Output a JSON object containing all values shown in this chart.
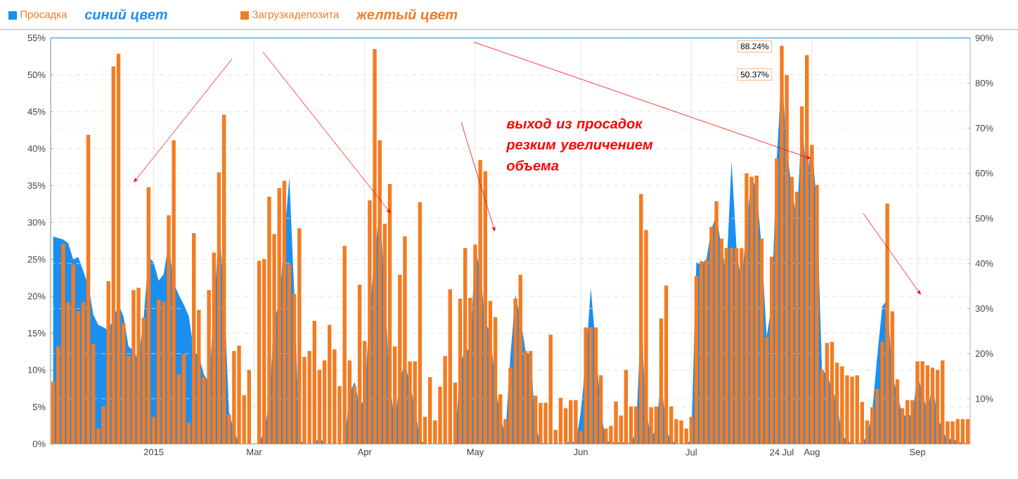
{
  "chart_data": {
    "type": "bar",
    "categories": [
      null,
      null,
      null,
      null,
      null,
      null,
      null,
      null,
      null,
      null,
      null,
      null,
      null,
      null,
      null,
      null,
      null,
      null,
      null,
      null,
      "2015",
      null,
      null,
      null,
      null,
      null,
      null,
      null,
      null,
      null,
      null,
      null,
      null,
      null,
      null,
      null,
      null,
      null,
      null,
      null,
      "Mar",
      null,
      null,
      null,
      null,
      null,
      null,
      null,
      null,
      null,
      null,
      null,
      null,
      null,
      null,
      null,
      null,
      null,
      null,
      null,
      null,
      null,
      "Apr",
      null,
      null,
      null,
      null,
      null,
      null,
      null,
      null,
      null,
      null,
      null,
      null,
      null,
      null,
      null,
      null,
      null,
      null,
      null,
      null,
      null,
      "May",
      null,
      null,
      null,
      null,
      null,
      null,
      null,
      null,
      null,
      null,
      null,
      null,
      null,
      null,
      null,
      null,
      null,
      null,
      null,
      null,
      "Jun",
      null,
      null,
      null,
      null,
      null,
      null,
      null,
      null,
      null,
      null,
      null,
      null,
      null,
      null,
      null,
      null,
      null,
      null,
      null,
      null,
      null,
      "Jul",
      null,
      null,
      null,
      null,
      null,
      null,
      null,
      null,
      null,
      null,
      null,
      null,
      null,
      null,
      null,
      null,
      null,
      "24 Jul",
      null,
      null,
      null,
      null,
      null,
      "Aug",
      null,
      null,
      null,
      null,
      null,
      null,
      null,
      null,
      null,
      null,
      null,
      null,
      null,
      null,
      null,
      null,
      null,
      null,
      null,
      null,
      "Sep",
      null,
      null,
      null,
      null,
      null,
      null,
      null,
      null,
      null,
      null
    ],
    "series": [
      {
        "name": "Просадка",
        "type": "area",
        "axis": "y",
        "color": "#1a8ff0",
        "values": [
          28.1,
          27.9,
          27.7,
          27.2,
          25.0,
          25.3,
          23.4,
          21.5,
          17.5,
          16.1,
          15.8,
          15.4,
          17.0,
          18.9,
          17.3,
          13.2,
          12.6,
          11.3,
          17.0,
          25.3,
          24.6,
          22.1,
          23.0,
          27.2,
          21.8,
          20.2,
          18.9,
          17.3,
          12.6,
          11.9,
          9.4,
          8.4,
          17.7,
          29.7,
          20.8,
          4.3,
          1.8,
          0,
          0,
          0,
          0,
          0,
          1.8,
          5.6,
          17.0,
          18.9,
          27.8,
          36.1,
          20.2,
          0.5,
          0,
          0,
          0,
          1.0,
          0,
          0,
          0,
          0,
          0,
          6.9,
          8.4,
          5.0,
          6.2,
          18.3,
          25.3,
          32.2,
          20.8,
          8.1,
          3.0,
          8.8,
          11.0,
          8.1,
          5.0,
          0.5,
          0,
          0,
          0,
          0,
          0,
          0,
          0,
          10.7,
          12.9,
          12.6,
          26.5,
          23.4,
          16.4,
          15.1,
          8.1,
          3.7,
          1.1,
          11.9,
          20.2,
          17.0,
          12.6,
          11.9,
          2.4,
          0.2,
          0,
          0,
          0,
          0,
          0,
          0.5,
          0,
          4.3,
          11.3,
          21.1,
          13.2,
          4.3,
          0.5,
          0.2,
          0.2,
          0.2,
          0.2,
          0,
          1.8,
          17.0,
          4.3,
          1.1,
          1.8,
          9.1,
          1.8,
          0.5,
          0,
          0,
          0,
          0.5,
          24.6,
          24.3,
          25.0,
          29.1,
          31.0,
          26.5,
          23.4,
          38.3,
          26.5,
          21.5,
          29.7,
          36.1,
          34.5,
          26.5,
          14.5,
          18.9,
          38.6,
          50.37,
          39.9,
          34.5,
          30.3,
          43.7,
          36.1,
          40.5,
          32.2,
          10.0,
          9.4,
          7.5,
          5.6,
          1.1,
          0.5,
          0,
          0,
          0.2,
          1.1,
          4.3,
          11.9,
          18.6,
          19.6,
          9.1,
          6.9,
          3.7,
          4.0,
          3.7,
          9.4,
          6.9,
          4.3,
          8.1,
          3.7,
          1.8,
          0.5,
          0.8,
          0.2,
          0.2,
          0
        ]
      },
      {
        "name": "Загрузкадепозита",
        "type": "bar",
        "axis": "y2",
        "color": "#f47b22",
        "values": [
          13.8,
          21.6,
          44.4,
          31.5,
          39.8,
          29.4,
          31.5,
          68.5,
          22.1,
          3.4,
          8.3,
          36.1,
          83.7,
          86.5,
          26.8,
          19.5,
          34.1,
          34.6,
          28.0,
          56.9,
          6.0,
          32.0,
          31.5,
          50.7,
          67.3,
          15.4,
          20.0,
          4.7,
          46.7,
          29.7,
          14.8,
          34.1,
          42.4,
          60.2,
          73.0,
          6.5,
          20.6,
          21.8,
          10.8,
          16.4,
          0,
          40.6,
          41.0,
          54.8,
          46.5,
          56.7,
          58.3,
          39.8,
          33.2,
          47.8,
          19.3,
          20.6,
          27.3,
          16.4,
          18.5,
          26.4,
          21.0,
          12.8,
          43.9,
          18.5,
          12.8,
          35.3,
          22.8,
          54.0,
          87.5,
          67.3,
          48.8,
          57.6,
          21.6,
          37.5,
          46.0,
          18.3,
          18.3,
          53.6,
          6.0,
          14.8,
          5.2,
          12.7,
          19.5,
          34.3,
          13.6,
          32.2,
          43.4,
          32.4,
          44.2,
          62.9,
          60.4,
          31.7,
          28.1,
          11.0,
          5.5,
          16.9,
          32.2,
          37.5,
          20.6,
          20.6,
          10.7,
          9.1,
          9.1,
          24.2,
          3.1,
          10.2,
          7.9,
          9.7,
          9.7,
          2.9,
          25.8,
          25.8,
          25.8,
          15.2,
          3.4,
          4.0,
          9.4,
          6.3,
          16.4,
          8.3,
          8.3,
          55.4,
          47.4,
          8.1,
          8.3,
          27.8,
          35.1,
          8.3,
          5.5,
          5.2,
          3.4,
          6.0,
          37.2,
          40.5,
          40.8,
          48.1,
          53.8,
          45.5,
          43.4,
          43.4,
          43.4,
          43.4,
          60.0,
          59.2,
          59.5,
          45.5,
          23.7,
          41.5,
          63.3,
          88.24,
          81.8,
          59.2,
          55.9,
          74.8,
          86.2,
          66.3,
          57.4,
          16.4,
          22.4,
          22.6,
          18.0,
          17.2,
          15.2,
          14.9,
          15.2,
          9.3,
          5.2,
          8.1,
          12.2,
          22.6,
          53.3,
          29.4,
          14.3,
          7.9,
          9.7,
          9.7,
          18.3,
          18.3,
          17.4,
          16.9,
          16.4,
          18.5,
          5.0,
          5.0,
          5.5,
          5.5,
          5.5
        ]
      }
    ],
    "ylim": [
      0,
      55
    ],
    "yticks": [
      {
        "value": 0,
        "label": "0%"
      },
      {
        "value": 5,
        "label": "5%"
      },
      {
        "value": 10,
        "label": "10%"
      },
      {
        "value": 15,
        "label": "15%"
      },
      {
        "value": 20,
        "label": "20%"
      },
      {
        "value": 25,
        "label": "25%"
      },
      {
        "value": 30,
        "label": "30%"
      },
      {
        "value": 35,
        "label": "35%"
      },
      {
        "value": 40,
        "label": "40%"
      },
      {
        "value": 45,
        "label": "45%"
      },
      {
        "value": 50,
        "label": "50%"
      },
      {
        "value": 55,
        "label": "55%"
      }
    ],
    "y2lim": [
      0,
      90
    ],
    "y2ticks": [
      {
        "value": 10,
        "label": "10%"
      },
      {
        "value": 20,
        "label": "20%"
      },
      {
        "value": 30,
        "label": "30%"
      },
      {
        "value": 40,
        "label": "40%"
      },
      {
        "value": 50,
        "label": "50%"
      },
      {
        "value": 60,
        "label": "60%"
      },
      {
        "value": 70,
        "label": "70%"
      },
      {
        "value": 80,
        "label": "80%"
      },
      {
        "value": 90,
        "label": "90%"
      }
    ],
    "grid": true,
    "legend": "top",
    "annotations": [
      "синий цвет",
      "желтый цвет",
      "выход из просадок резким увеличением объема",
      "88.24%",
      "50.37%"
    ]
  }
}
